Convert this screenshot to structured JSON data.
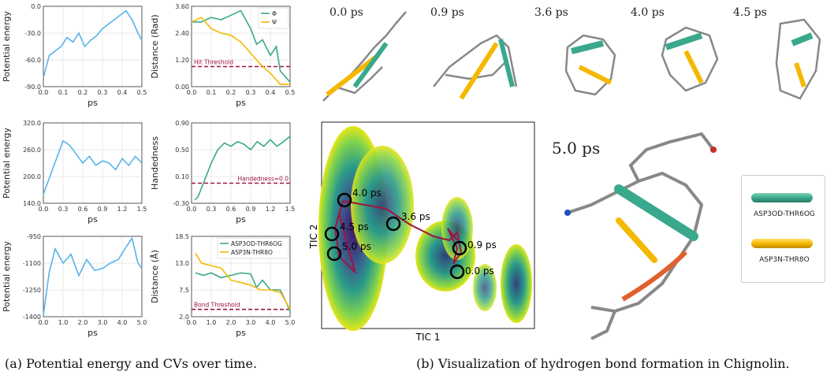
{
  "captions": {
    "a": "(a) Potential energy and CVs over time.",
    "b": "(b) Visualization of hydrogen bond formation in Chignolin."
  },
  "snapshots": [
    "0.0 ps",
    "0.9 ps",
    "3.6 ps",
    "4.0 ps",
    "4.5 ps"
  ],
  "final_label": "5.0 ps",
  "bond_legend": [
    "ASP3OD-THR6OG",
    "ASP3N-THR8O"
  ],
  "colors": {
    "blue": "#56b4e9",
    "teal": "#3aa88c",
    "yellow": "#f5b800",
    "maroon": "#a0143c"
  },
  "chart_data": [
    {
      "type": "line",
      "id": "pe1",
      "xlabel": "ps",
      "ylabel": "Potential energy",
      "xlim": [
        0,
        0.5
      ],
      "ylim": [
        -90,
        0
      ],
      "xticks": [
        "0.0",
        "0.1",
        "0.2",
        "0.3",
        "0.4",
        "0.5"
      ],
      "yticks": [
        "-90.0",
        "-60.0",
        "-30.0",
        "0.0"
      ],
      "series": [
        {
          "x": [
            0,
            0.03,
            0.06,
            0.09,
            0.12,
            0.15,
            0.18,
            0.21,
            0.24,
            0.27,
            0.3,
            0.33,
            0.36,
            0.39,
            0.42,
            0.45,
            0.48,
            0.5
          ],
          "y": [
            -80,
            -55,
            -50,
            -45,
            -35,
            -40,
            -30,
            -45,
            -38,
            -33,
            -25,
            -20,
            -15,
            -10,
            -5,
            -15,
            -30,
            -38
          ]
        }
      ]
    },
    {
      "type": "line",
      "id": "cv1",
      "xlabel": "ps",
      "ylabel": "Distance (Rad)",
      "xlim": [
        0,
        0.5
      ],
      "ylim": [
        0,
        3.6
      ],
      "xticks": [
        "0.0",
        "0.1",
        "0.2",
        "0.3",
        "0.4",
        "0.5"
      ],
      "yticks": [
        "0.00",
        "1.20",
        "2.40",
        "3.60"
      ],
      "threshold": 0.9,
      "threshold_label": "Hit Threshold",
      "legend": "top-right",
      "series": [
        {
          "name": "Φ",
          "x": [
            0,
            0.05,
            0.1,
            0.15,
            0.2,
            0.25,
            0.3,
            0.33,
            0.36,
            0.4,
            0.43,
            0.45,
            0.48,
            0.5
          ],
          "y": [
            2.9,
            2.9,
            3.1,
            3.0,
            3.2,
            3.4,
            2.6,
            1.9,
            2.1,
            1.4,
            1.8,
            0.7,
            0.4,
            0.2
          ]
        },
        {
          "name": "Ψ",
          "x": [
            0,
            0.05,
            0.1,
            0.15,
            0.2,
            0.25,
            0.3,
            0.35,
            0.4,
            0.45,
            0.5
          ],
          "y": [
            2.9,
            3.1,
            2.6,
            2.4,
            2.3,
            2.0,
            1.5,
            1.0,
            0.6,
            0.1,
            0.1
          ]
        }
      ]
    },
    {
      "type": "line",
      "id": "pe2",
      "xlabel": "ps",
      "ylabel": "Potential energy",
      "xlim": [
        0,
        1.5
      ],
      "ylim": [
        140,
        320
      ],
      "xticks": [
        "0.0",
        "0.3",
        "0.6",
        "0.9",
        "1.2",
        "1.5"
      ],
      "yticks": [
        "140.0",
        "200.0",
        "260.0",
        "320.0"
      ],
      "series": [
        {
          "x": [
            0,
            0.1,
            0.2,
            0.3,
            0.4,
            0.5,
            0.6,
            0.7,
            0.8,
            0.9,
            1.0,
            1.1,
            1.2,
            1.3,
            1.4,
            1.5
          ],
          "y": [
            160,
            200,
            240,
            280,
            270,
            250,
            230,
            245,
            225,
            235,
            230,
            215,
            240,
            225,
            245,
            230
          ]
        }
      ]
    },
    {
      "type": "line",
      "id": "cv2",
      "xlabel": "ps",
      "ylabel": "Handedness",
      "xlim": [
        0,
        1.5
      ],
      "ylim": [
        -0.3,
        0.9
      ],
      "xticks": [
        "0.0",
        "0.3",
        "0.6",
        "0.9",
        "1.2",
        "1.5"
      ],
      "yticks": [
        "-0.30",
        "0.10",
        "0.50",
        "0.90"
      ],
      "threshold": 0.0,
      "threshold_label": "Handedness=0.0",
      "series": [
        {
          "x": [
            0.05,
            0.1,
            0.2,
            0.3,
            0.4,
            0.5,
            0.6,
            0.7,
            0.8,
            0.9,
            1.0,
            1.1,
            1.2,
            1.3,
            1.4,
            1.5
          ],
          "y": [
            -0.25,
            -0.2,
            0.05,
            0.3,
            0.5,
            0.6,
            0.55,
            0.62,
            0.58,
            0.5,
            0.62,
            0.55,
            0.65,
            0.55,
            0.62,
            0.7
          ]
        }
      ]
    },
    {
      "type": "line",
      "id": "pe3",
      "xlabel": "ps",
      "ylabel": "Potential energy",
      "xlim": [
        0,
        5.0
      ],
      "ylim": [
        -1400,
        -950
      ],
      "xticks": [
        "0.0",
        "1.0",
        "2.0",
        "3.0",
        "4.0",
        "5.0"
      ],
      "yticks": [
        "-1400",
        "-1250",
        "-1100",
        "-950"
      ],
      "series": [
        {
          "x": [
            0,
            0.3,
            0.6,
            1.0,
            1.4,
            1.8,
            2.2,
            2.6,
            3.0,
            3.4,
            3.8,
            4.2,
            4.5,
            4.8,
            5.0
          ],
          "y": [
            -1390,
            -1150,
            -1020,
            -1100,
            -1050,
            -1170,
            -1080,
            -1140,
            -1130,
            -1100,
            -1080,
            -1010,
            -960,
            -1100,
            -1130
          ]
        }
      ]
    },
    {
      "type": "line",
      "id": "cv3",
      "xlabel": "ps",
      "ylabel": "Distance (Å)",
      "xlim": [
        0,
        5.0
      ],
      "ylim": [
        2.0,
        18.5
      ],
      "xticks": [
        "0.0",
        "1.0",
        "2.0",
        "3.0",
        "4.0",
        "5.0"
      ],
      "yticks": [
        "2.0",
        "7.5",
        "13.0",
        "18.5"
      ],
      "threshold": 3.5,
      "threshold_label": "Bond Threshold",
      "legend": "top-right",
      "series": [
        {
          "name": "ASP3OD-THR6OG",
          "x": [
            0.2,
            0.6,
            1.0,
            1.5,
            2.0,
            2.5,
            3.0,
            3.3,
            3.6,
            4.0,
            4.5,
            4.8,
            5.0
          ],
          "y": [
            11,
            10.5,
            11,
            10,
            10.5,
            11,
            10.8,
            8,
            9.5,
            7.5,
            7.5,
            5,
            3
          ]
        },
        {
          "name": "ASP3N-THR8O",
          "x": [
            0.2,
            0.5,
            1.0,
            1.5,
            2.0,
            2.5,
            3.0,
            3.5,
            4.0,
            4.5,
            4.8,
            5.0
          ],
          "y": [
            15,
            13,
            12.5,
            12,
            9.5,
            9,
            8.5,
            7.5,
            7.5,
            7,
            5,
            3.5
          ]
        }
      ]
    }
  ],
  "map": {
    "xlabel": "TIC 1",
    "ylabel": "TIC 2",
    "markers": [
      "4.0 ps",
      "3.6 ps",
      "4.5 ps",
      "5.0 ps",
      "0.9 ps",
      "0.0 ps"
    ]
  }
}
